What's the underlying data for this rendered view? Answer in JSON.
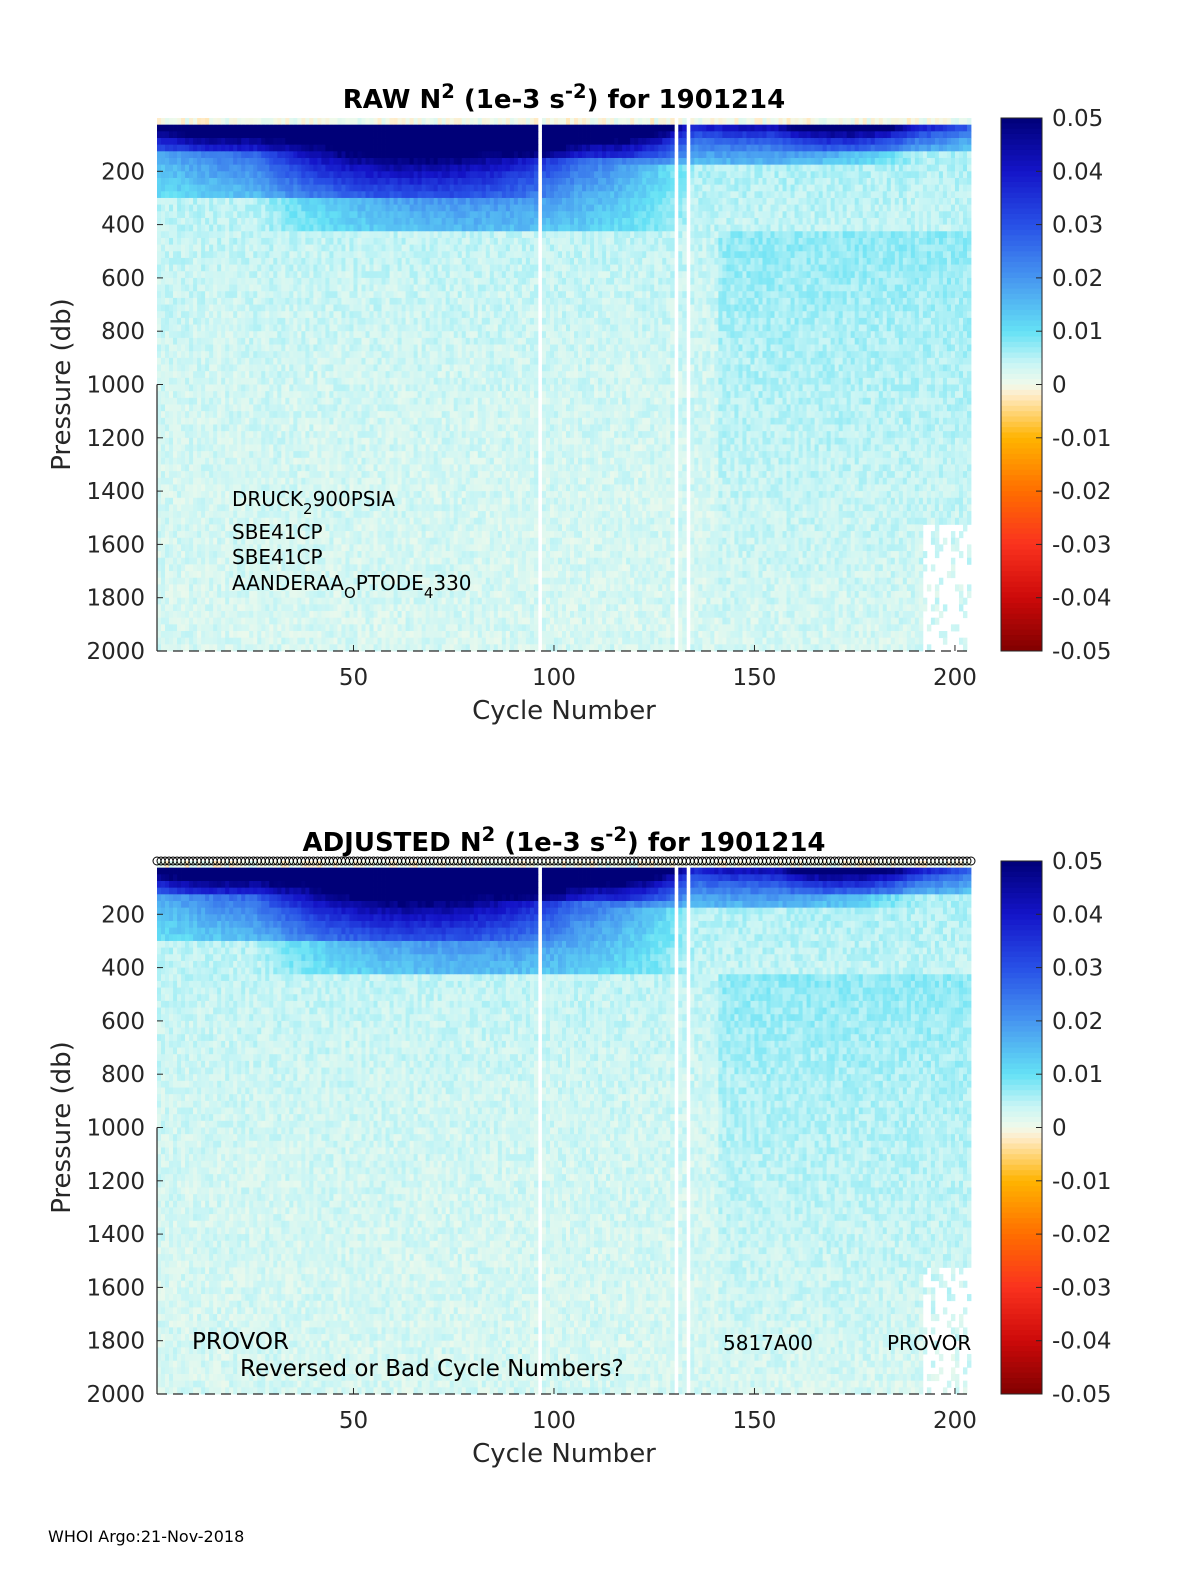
{
  "chart_data": [
    {
      "type": "heatmap",
      "title": {
        "prefix": "RAW N",
        "sup1": "2",
        "mid": " (1e-3 s",
        "sup2": "-2",
        "suffix": ") for 1901214"
      },
      "xlabel": "Cycle Number",
      "ylabel": "Pressure (db)",
      "xlim": [
        1,
        204
      ],
      "ylim": [
        0,
        2000
      ],
      "xticks": [
        50,
        100,
        150,
        200
      ],
      "yticks": [
        200,
        400,
        600,
        800,
        1000,
        1200,
        1400,
        1600,
        1800,
        2000
      ],
      "colorbar": {
        "min": -0.05,
        "max": 0.05,
        "ticks": [
          "0.05",
          "0.04",
          "0.03",
          "0.02",
          "0.01",
          "0",
          "-0.01",
          "-0.02",
          "-0.03",
          "-0.04",
          "-0.05"
        ]
      },
      "gap_cycles": [
        96,
        130,
        133
      ],
      "annotations": {
        "sensor1": {
          "a": "DRUCK",
          "sub": "2",
          "b": "900PSIA"
        },
        "sensor2": "SBE41CP",
        "sensor3": "SBE41CP",
        "sensor4": {
          "a": "AANDERAA",
          "sub1": "O",
          "b": "PTODE",
          "sub2": "4",
          "c": "330"
        }
      }
    },
    {
      "type": "heatmap",
      "title": {
        "prefix": "ADJUSTED N",
        "sup1": "2",
        "mid": " (1e-3 s",
        "sup2": "-2",
        "suffix": ") for 1901214"
      },
      "xlabel": "Cycle Number",
      "ylabel": "Pressure (db)",
      "xlim": [
        1,
        204
      ],
      "ylim": [
        0,
        2000
      ],
      "xticks": [
        50,
        100,
        150,
        200
      ],
      "yticks": [
        200,
        400,
        600,
        800,
        1000,
        1200,
        1400,
        1600,
        1800,
        2000
      ],
      "colorbar": {
        "min": -0.05,
        "max": 0.05,
        "ticks": [
          "0.05",
          "0.04",
          "0.03",
          "0.02",
          "0.01",
          "0",
          "-0.01",
          "-0.02",
          "-0.03",
          "-0.04",
          "-0.05"
        ]
      },
      "gap_cycles": [
        96,
        130,
        133
      ],
      "annotations": {
        "platform_left": "PROVOR",
        "warning": "Reversed or Bad Cycle Numbers?",
        "model": "5817A00",
        "platform_right": "PROVOR"
      }
    }
  ],
  "footer": "WHOI Argo:21-Nov-2018"
}
